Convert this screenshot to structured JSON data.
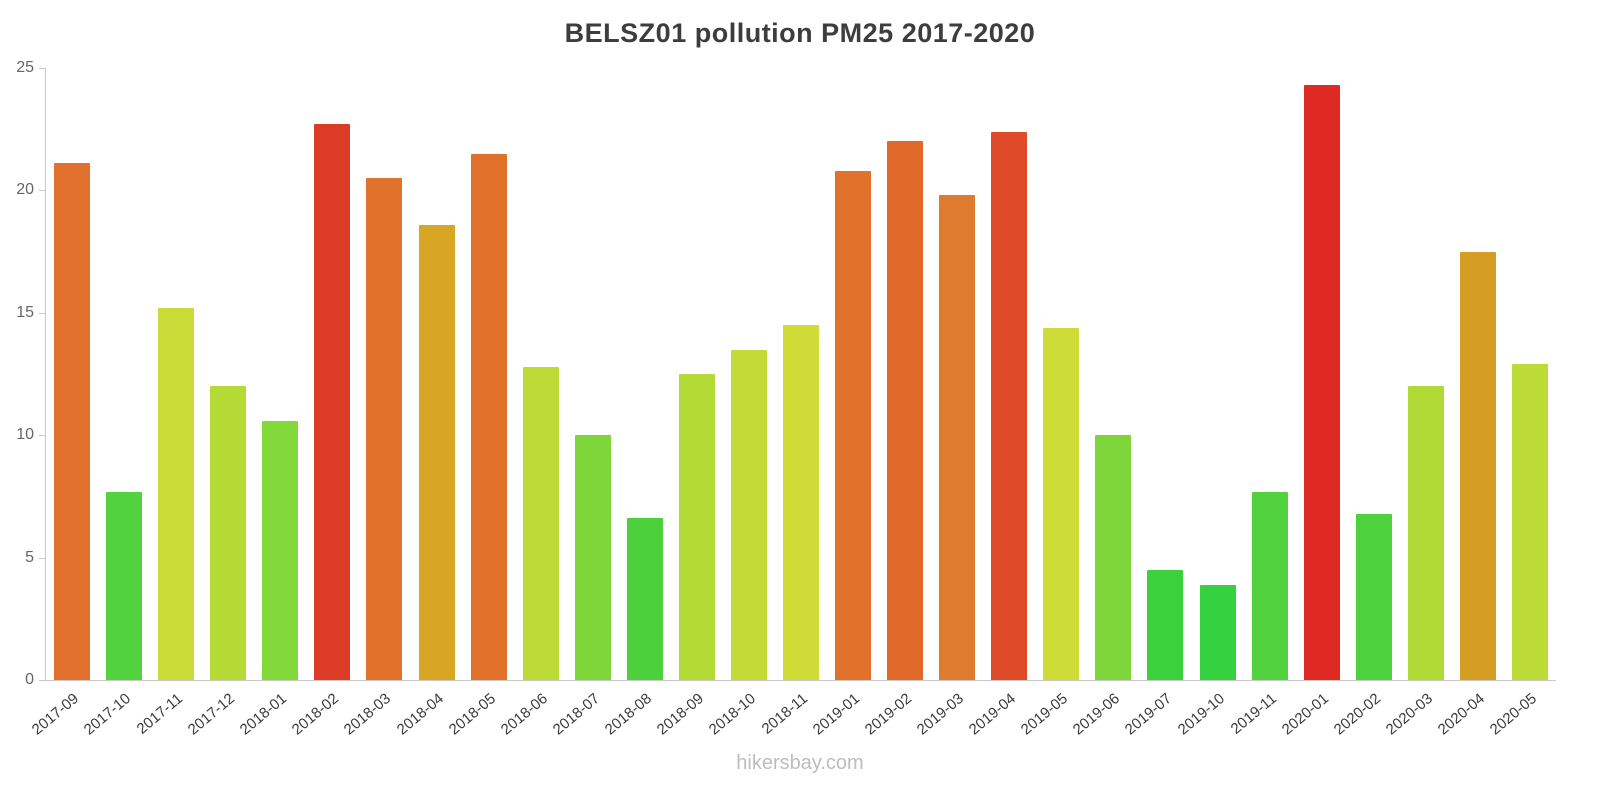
{
  "page": {
    "title": "BELSZ01 pollution PM25 2017-2020",
    "watermark": "hikersbay.com"
  },
  "chart_data": {
    "type": "bar",
    "title": "BELSZ01 pollution PM25 2017-2020",
    "xlabel": "",
    "ylabel": "",
    "ylim": [
      0,
      25
    ],
    "ytick_step": 5,
    "grid": false,
    "legend": "none",
    "categories": [
      "2017-09",
      "2017-10",
      "2017-11",
      "2017-12",
      "2018-01",
      "2018-02",
      "2018-03",
      "2018-04",
      "2018-05",
      "2018-06",
      "2018-07",
      "2018-08",
      "2018-09",
      "2018-10",
      "2018-11",
      "2019-01",
      "2019-02",
      "2019-03",
      "2019-04",
      "2019-05",
      "2019-06",
      "2019-07",
      "2019-10",
      "2019-11",
      "2020-01",
      "2020-02",
      "2020-03",
      "2020-04",
      "2020-05"
    ],
    "values": [
      21.1,
      7.7,
      15.2,
      12.0,
      10.6,
      22.7,
      20.5,
      18.6,
      21.5,
      12.8,
      10.0,
      6.6,
      12.5,
      13.5,
      14.5,
      20.8,
      22.0,
      19.8,
      22.4,
      14.4,
      10.0,
      4.5,
      3.9,
      7.7,
      24.3,
      6.8,
      12.0,
      17.5,
      12.9
    ],
    "colors": [
      "#E0702B",
      "#52D23C",
      "#CBDB38",
      "#B5DA35",
      "#84D93A",
      "#DC3B26",
      "#E0722C",
      "#D8A525",
      "#E0712B",
      "#BCDB36",
      "#7ED63A",
      "#4CD13C",
      "#B4DA36",
      "#C4DB37",
      "#CFDC37",
      "#E0722C",
      "#E06A29",
      "#DF7B2E",
      "#DF4A28",
      "#CEDC37",
      "#7ED63A",
      "#3BD13D",
      "#35D13E",
      "#52D23C",
      "#DE2A23",
      "#4DD13C",
      "#B0DA35",
      "#D49E23",
      "#BDDB36"
    ]
  }
}
